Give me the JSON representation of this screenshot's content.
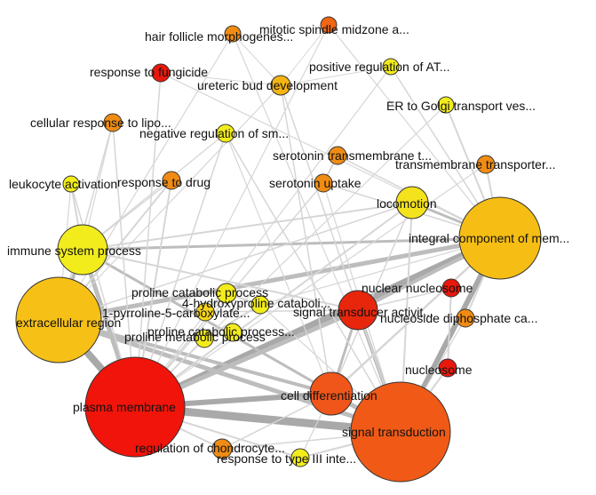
{
  "network": {
    "nodes": [
      {
        "id": "hair_follicle",
        "label": "hair follicle morphogenes...",
        "color": "#f08c14",
        "size": 2
      },
      {
        "id": "mitotic_spindle",
        "label": "mitotic spindle midzone a...",
        "color": "#f06614",
        "size": 2
      },
      {
        "id": "response_fungicide",
        "label": "response to fungicide",
        "color": "#e8180c",
        "size": 2
      },
      {
        "id": "positive_regulation_at",
        "label": "positive regulation of AT...",
        "color": "#f2ec1c",
        "size": 2
      },
      {
        "id": "ureteric_bud",
        "label": "ureteric bud development",
        "color": "#f4b414",
        "size": 2
      },
      {
        "id": "er_golgi",
        "label": "ER to Golgi transport ves...",
        "color": "#f2ec1c",
        "size": 2
      },
      {
        "id": "cellular_response_lipo",
        "label": "cellular response to lipo...",
        "color": "#f08c14",
        "size": 2
      },
      {
        "id": "negative_regulation_sm",
        "label": "negative regulation of sm...",
        "color": "#f2ec1c",
        "size": 2
      },
      {
        "id": "serotonin_transmembrane",
        "label": "serotonin transmembrane t...",
        "color": "#f08c14",
        "size": 2
      },
      {
        "id": "transmembrane_transporter",
        "label": "transmembrane transporter...",
        "color": "#f08c14",
        "size": 2
      },
      {
        "id": "leukocyte_activation",
        "label": "leukocyte activation",
        "color": "#f2ec1c",
        "size": 2
      },
      {
        "id": "response_drug",
        "label": "response to drug",
        "color": "#f08c14",
        "size": 2
      },
      {
        "id": "serotonin_uptake",
        "label": "serotonin uptake",
        "color": "#f08c14",
        "size": 2
      },
      {
        "id": "locomotion",
        "label": "locomotion",
        "color": "#f4e21c",
        "size": 3
      },
      {
        "id": "integral_component",
        "label": "integral component of mem...",
        "color": "#f6be14",
        "size": 5
      },
      {
        "id": "immune_system",
        "label": "immune system process",
        "color": "#f2ec1c",
        "size": 4
      },
      {
        "id": "nuclear_nucleosome",
        "label": "nuclear nucleosome",
        "color": "#e8180c",
        "size": 2
      },
      {
        "id": "proline_catabolic",
        "label": "proline catabolic process",
        "color": "#f2ec1c",
        "size": 2
      },
      {
        "id": "hydroxyproline",
        "label": "4-hydroxyproline cataboli...",
        "color": "#f2ec1c",
        "size": 2
      },
      {
        "id": "pyrroline",
        "label": "1-pyrroline-5-carboxylate...",
        "color": "#f4d418",
        "size": 2
      },
      {
        "id": "signal_transducer",
        "label": "signal transducer activit...",
        "color": "#e8260c",
        "size": 3
      },
      {
        "id": "extracellular_region",
        "label": "extracellular region",
        "color": "#f6c016",
        "size": 5
      },
      {
        "id": "proline_catabolic_2",
        "label": "proline catabolic process...",
        "color": "#f2ec1c",
        "size": 2
      },
      {
        "id": "proline_metabolic",
        "label": "proline metabolic process",
        "color": "#f2ec1c",
        "size": 2
      },
      {
        "id": "nucleoside_diphosphate",
        "label": "nucleoside diphosphate ca...",
        "color": "#f08c14",
        "size": 2
      },
      {
        "id": "nucleosome",
        "label": "nucleosome",
        "color": "#e8180c",
        "size": 2
      },
      {
        "id": "plasma_membrane",
        "label": "plasma membrane",
        "color": "#f0140a",
        "size": 5
      },
      {
        "id": "cell_differentiation",
        "label": "cell differentiation",
        "color": "#f0561a",
        "size": 3
      },
      {
        "id": "signal_transduction",
        "label": "signal transduction",
        "color": "#f05a16",
        "size": 5
      },
      {
        "id": "regulation_chondrocyte",
        "label": "regulation of chondrocyte...",
        "color": "#f08c14",
        "size": 2
      },
      {
        "id": "response_type_iii",
        "label": "response to type III inte...",
        "color": "#f2ec1c",
        "size": 2
      }
    ]
  }
}
